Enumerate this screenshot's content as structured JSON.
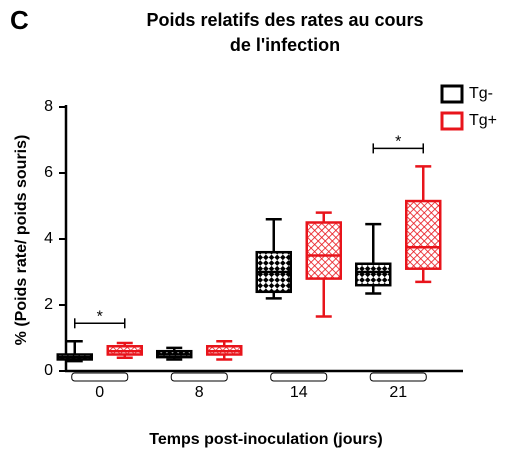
{
  "chart_data": {
    "type": "box",
    "panel_label": "C",
    "title": [
      "Poids relatifs des rates au cours",
      "de l'infection"
    ],
    "x_label": "Temps post-inoculation (jours)",
    "y_label": "% (Poids rate/ poids souris)",
    "categories": [
      "0",
      "8",
      "14",
      "21"
    ],
    "ylim": [
      0,
      8
    ],
    "yticks": [
      0,
      2,
      4,
      6,
      8
    ],
    "legend_position": "upper right",
    "series": [
      {
        "name": "Tg-",
        "color": "#000000",
        "values": [
          {
            "min": 0.3,
            "q1": 0.35,
            "median": 0.42,
            "q3": 0.5,
            "max": 0.9
          },
          {
            "min": 0.35,
            "q1": 0.42,
            "median": 0.5,
            "q3": 0.6,
            "max": 0.7
          },
          {
            "min": 2.2,
            "q1": 2.4,
            "median": 3.0,
            "q3": 3.6,
            "max": 4.6
          },
          {
            "min": 2.35,
            "q1": 2.6,
            "median": 3.0,
            "q3": 3.25,
            "max": 4.45
          }
        ]
      },
      {
        "name": "Tg+",
        "color": "#e8141b",
        "values": [
          {
            "min": 0.4,
            "q1": 0.5,
            "median": 0.6,
            "q3": 0.75,
            "max": 0.85
          },
          {
            "min": 0.35,
            "q1": 0.5,
            "median": 0.6,
            "q3": 0.75,
            "max": 0.9
          },
          {
            "min": 1.65,
            "q1": 2.8,
            "median": 3.5,
            "q3": 4.5,
            "max": 4.8
          },
          {
            "min": 2.7,
            "q1": 3.1,
            "median": 3.75,
            "q3": 5.15,
            "max": 6.2
          }
        ]
      }
    ],
    "annotations": [
      {
        "text": "*",
        "category": "0"
      },
      {
        "text": "*",
        "category": "21"
      }
    ]
  }
}
